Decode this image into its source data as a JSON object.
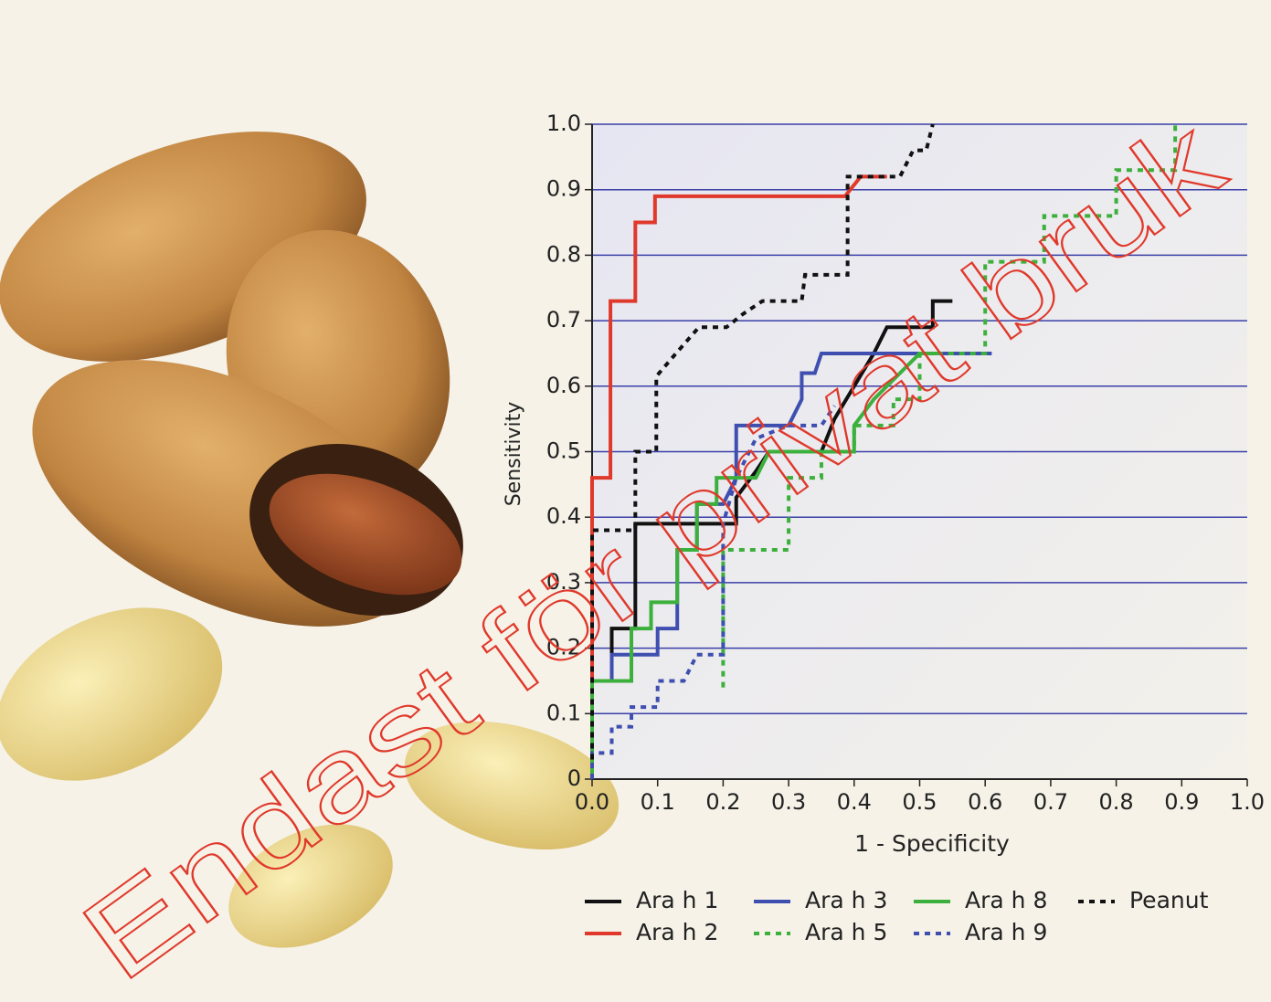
{
  "chart_data": {
    "type": "line",
    "xlabel": "1 - Specificity",
    "ylabel": "Sensitivity",
    "watermark": "Endast för privat bruk",
    "xlim": [
      0,
      1
    ],
    "ylim": [
      0,
      1
    ],
    "xticks": [
      {
        "value": 0,
        "label": "0.0"
      },
      0.1,
      0.2,
      0.3,
      0.4,
      0.5,
      0.6,
      0.7,
      0.8,
      0.9,
      {
        "value": 1,
        "label": "1.0"
      }
    ],
    "yticks": [
      0,
      0.1,
      0.2,
      0.3,
      0.4,
      0.5,
      0.6,
      0.7,
      0.8,
      0.9,
      {
        "value": 1,
        "label": "1.0"
      }
    ],
    "grid": true,
    "grid_color": "#3a3fa8",
    "step": true,
    "series": [
      {
        "name": "Ara h 1",
        "color": "#111111",
        "dashed": false,
        "x": [
          0,
          0,
          0.03,
          0.03,
          0.066,
          0.066,
          0.22,
          0.22,
          0.25,
          0.27,
          0.35,
          0.37,
          0.4,
          0.43,
          0.45,
          0.52,
          0.52,
          0.55
        ],
        "values": [
          0,
          0.15,
          0.15,
          0.23,
          0.23,
          0.39,
          0.39,
          0.43,
          0.47,
          0.5,
          0.5,
          0.55,
          0.6,
          0.65,
          0.69,
          0.69,
          0.73,
          0.73
        ]
      },
      {
        "name": "Ara h 2",
        "color": "#e0392b",
        "dashed": false,
        "x": [
          0,
          0,
          0.028,
          0.028,
          0.066,
          0.066,
          0.096,
          0.096,
          0.386,
          0.41,
          0.45
        ],
        "values": [
          0,
          0.46,
          0.46,
          0.73,
          0.73,
          0.85,
          0.85,
          0.89,
          0.89,
          0.92,
          0.92
        ]
      },
      {
        "name": "Ara h 3",
        "color": "#3f4fb0",
        "dashed": false,
        "x": [
          0,
          0,
          0.03,
          0.03,
          0.1,
          0.1,
          0.13,
          0.13,
          0.16,
          0.16,
          0.2,
          0.22,
          0.22,
          0.3,
          0.32,
          0.32,
          0.34,
          0.35,
          0.61
        ],
        "values": [
          0,
          0.15,
          0.15,
          0.19,
          0.19,
          0.23,
          0.23,
          0.35,
          0.35,
          0.42,
          0.42,
          0.46,
          0.54,
          0.54,
          0.58,
          0.62,
          0.62,
          0.65,
          0.65
        ]
      },
      {
        "name": "Ara h 5",
        "color": "#3cb03c",
        "dashed": true,
        "x": [
          0.2,
          0.2,
          0.3,
          0.3,
          0.35,
          0.35,
          0.4,
          0.4,
          0.46,
          0.46,
          0.5,
          0.5,
          0.6,
          0.6,
          0.69,
          0.69,
          0.8,
          0.8,
          0.89,
          0.89
        ],
        "values": [
          0.14,
          0.35,
          0.35,
          0.46,
          0.46,
          0.5,
          0.5,
          0.54,
          0.54,
          0.58,
          0.58,
          0.65,
          0.65,
          0.79,
          0.79,
          0.86,
          0.86,
          0.93,
          0.93,
          1
        ]
      },
      {
        "name": "Ara h 8",
        "color": "#3cb03c",
        "dashed": false,
        "x": [
          0,
          0,
          0.06,
          0.06,
          0.09,
          0.09,
          0.13,
          0.13,
          0.16,
          0.16,
          0.19,
          0.19,
          0.25,
          0.27,
          0.4,
          0.4,
          0.43,
          0.47,
          0.5,
          0.53
        ],
        "values": [
          0,
          0.15,
          0.15,
          0.23,
          0.23,
          0.27,
          0.27,
          0.35,
          0.35,
          0.42,
          0.42,
          0.46,
          0.46,
          0.5,
          0.5,
          0.54,
          0.58,
          0.62,
          0.65,
          0.65
        ]
      },
      {
        "name": "Ara h 9",
        "color": "#3f4fb0",
        "dashed": true,
        "x": [
          0,
          0,
          0.03,
          0.03,
          0.06,
          0.06,
          0.1,
          0.1,
          0.14,
          0.16,
          0.2,
          0.2,
          0.22,
          0.25,
          0.3,
          0.35,
          0.37
        ],
        "values": [
          0,
          0.04,
          0.04,
          0.08,
          0.08,
          0.11,
          0.11,
          0.15,
          0.15,
          0.19,
          0.19,
          0.39,
          0.46,
          0.52,
          0.54,
          0.54,
          0.57
        ]
      },
      {
        "name": "Peanut",
        "color": "#111111",
        "dashed": true,
        "x": [
          0,
          0,
          0.066,
          0.066,
          0.098,
          0.098,
          0.128,
          0.163,
          0.205,
          0.23,
          0.26,
          0.32,
          0.325,
          0.39,
          0.39,
          0.47,
          0.49,
          0.51,
          0.52
        ],
        "values": [
          0.03,
          0.38,
          0.38,
          0.5,
          0.5,
          0.615,
          0.65,
          0.69,
          0.69,
          0.71,
          0.73,
          0.73,
          0.77,
          0.77,
          0.92,
          0.92,
          0.96,
          0.96,
          1
        ]
      }
    ]
  }
}
